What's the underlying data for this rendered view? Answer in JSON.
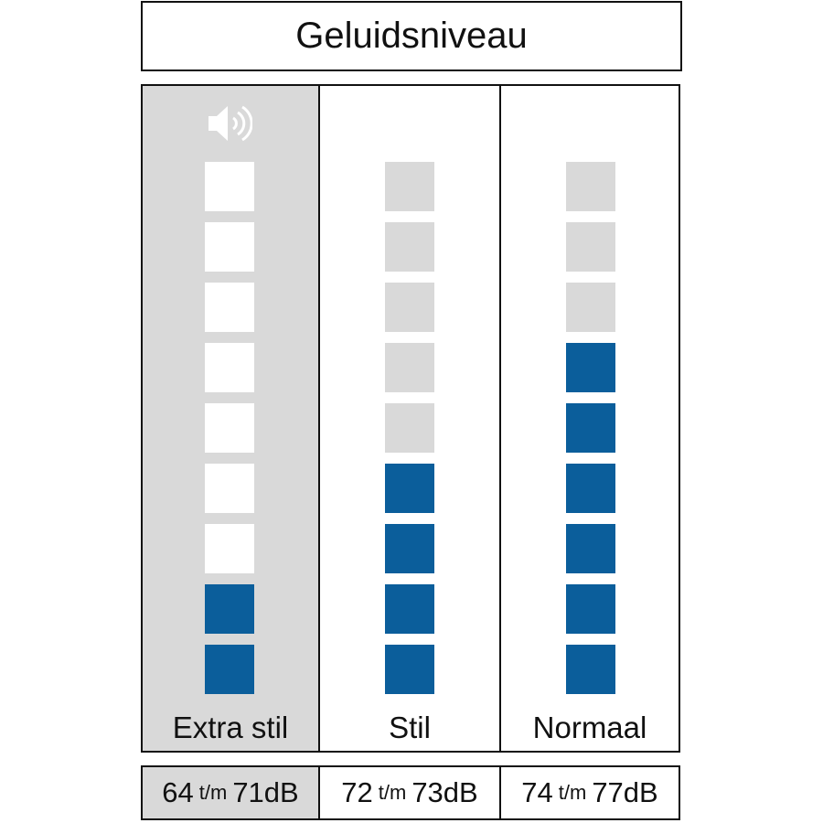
{
  "title": "Geluidsniveau",
  "colors": {
    "filled": "#0b5e9b",
    "empty_on_selected": "#ffffff",
    "empty": "#d9d9d9",
    "selected_bg": "#d9d9d9"
  },
  "icon": "speaker-volume-icon",
  "total_segments": 9,
  "levels": [
    {
      "label": "Extra stil",
      "filled": 2,
      "selected": true,
      "range_from": "64",
      "range_sep": "t/m",
      "range_to": "71dB"
    },
    {
      "label": "Stil",
      "filled": 4,
      "selected": false,
      "range_from": "72",
      "range_sep": "t/m",
      "range_to": "73dB"
    },
    {
      "label": "Normaal",
      "filled": 6,
      "selected": false,
      "range_from": "74",
      "range_sep": "t/m",
      "range_to": "77dB"
    }
  ]
}
